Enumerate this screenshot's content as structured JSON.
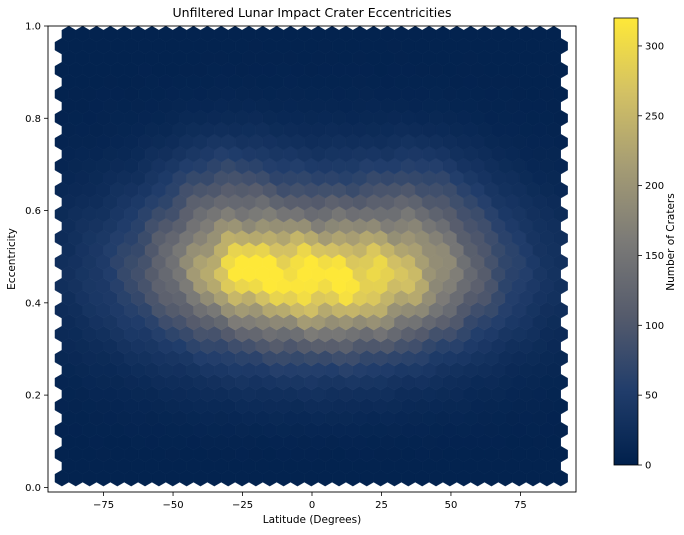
{
  "chart_data": {
    "type": "heatmap",
    "subtype": "hexbin",
    "title": "Unfiltered Lunar Impact Crater Eccentricities",
    "xlabel": "Latitude (Degrees)",
    "ylabel": "Eccentricity",
    "xlim": [
      -95,
      95
    ],
    "ylim": [
      -0.01,
      1.0
    ],
    "xticks": [
      -75,
      -50,
      -25,
      0,
      25,
      50,
      75
    ],
    "xtick_labels": [
      "−75",
      "−50",
      "−25",
      "0",
      "25",
      "50",
      "75"
    ],
    "yticks": [
      0.0,
      0.2,
      0.4,
      0.6,
      0.8,
      1.0
    ],
    "ytick_labels": [
      "0.0",
      "0.2",
      "0.4",
      "0.6",
      "0.8",
      "1.0"
    ],
    "data_extent": {
      "x": [
        -90,
        90
      ],
      "y": [
        0.02,
        0.98
      ]
    },
    "colormap": "cividis",
    "colormap_stops": [
      "#00204c",
      "#213d6b",
      "#555b6c",
      "#7b7a77",
      "#a59c74",
      "#d3c164",
      "#fee838"
    ],
    "colorbar": {
      "label": "Number of Craters",
      "range": [
        0,
        320
      ],
      "ticks": [
        0,
        50,
        100,
        150,
        200,
        250,
        300
      ],
      "tick_labels": [
        "0",
        "50",
        "100",
        "150",
        "200",
        "250",
        "300"
      ]
    },
    "peak": {
      "x": -25,
      "y": 0.47,
      "count": 320
    },
    "grid": false,
    "legend": "none"
  }
}
